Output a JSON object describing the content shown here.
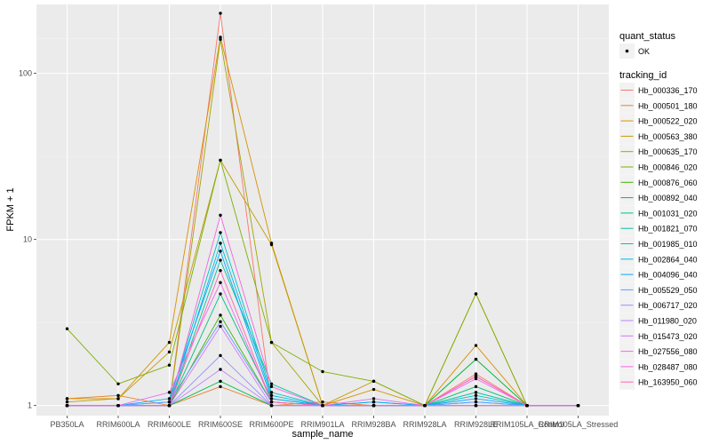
{
  "chart_data": {
    "type": "line",
    "xlabel": "sample_name",
    "ylabel": "FPKM + 1",
    "y_scale": "log10",
    "ylim": [
      0.87,
      260
    ],
    "grid": true,
    "categories": [
      "PB350LA",
      "RRIM600LA",
      "RRIM600LE",
      "RRIM600SE",
      "RRIM600PE",
      "RRIM901LA",
      "RRIM928BA",
      "RRIM928LA",
      "RRIM928LE",
      "RRIM105LA_Control",
      "RRIM105LA_Stressed"
    ],
    "y_ticks": [
      1,
      10,
      100
    ],
    "y_tick_labels": [
      "1",
      "10",
      "100"
    ],
    "legend": {
      "position": "right",
      "quant_title": "quant_status",
      "quant_label": "OK",
      "tracking_title": "tracking_id"
    },
    "series": [
      {
        "name": "Hb_000336_170",
        "color": "#F8766D",
        "values": [
          1.0,
          1.0,
          1.0,
          230,
          1.0,
          1.0,
          1.0,
          1.0,
          1.55,
          1.0,
          1.0
        ]
      },
      {
        "name": "Hb_000501_180",
        "color": "#EA8331",
        "values": [
          1.1,
          1.15,
          1.0,
          1.3,
          1.0,
          1.05,
          1.0,
          1.0,
          1.0,
          1.0,
          1.0
        ]
      },
      {
        "name": "Hb_000522_020",
        "color": "#D89000",
        "values": [
          1.1,
          1.1,
          2.4,
          165,
          9.5,
          1.0,
          1.25,
          1.0,
          2.3,
          1.0,
          1.0
        ]
      },
      {
        "name": "Hb_000563_380",
        "color": "#C09B00",
        "values": [
          1.05,
          1.1,
          2.1,
          30,
          9.3,
          1.0,
          1.4,
          1.0,
          4.7,
          1.0,
          1.0
        ]
      },
      {
        "name": "Hb_000635_170",
        "color": "#A3A500",
        "values": [
          1.0,
          1.0,
          1.0,
          160,
          2.4,
          1.0,
          1.0,
          1.0,
          1.0,
          1.0,
          1.0
        ]
      },
      {
        "name": "Hb_000846_020",
        "color": "#7CAE00",
        "values": [
          2.9,
          1.35,
          1.75,
          30,
          2.4,
          1.6,
          1.4,
          1.0,
          4.7,
          1.0,
          1.0
        ]
      },
      {
        "name": "Hb_000876_060",
        "color": "#39B600",
        "values": [
          1.0,
          1.0,
          1.0,
          3.5,
          1.05,
          1.0,
          1.0,
          1.0,
          1.9,
          1.0,
          1.0
        ]
      },
      {
        "name": "Hb_000892_040",
        "color": "#00BB4E",
        "values": [
          1.0,
          1.0,
          1.0,
          1.4,
          1.0,
          1.0,
          1.0,
          1.0,
          1.9,
          1.0,
          1.0
        ]
      },
      {
        "name": "Hb_001031_020",
        "color": "#00BF7D",
        "values": [
          1.0,
          1.0,
          1.0,
          4.7,
          1.1,
          1.0,
          1.0,
          1.0,
          1.3,
          1.0,
          1.0
        ]
      },
      {
        "name": "Hb_001821_070",
        "color": "#00C1A3",
        "values": [
          1.0,
          1.0,
          1.0,
          7.5,
          1.35,
          1.0,
          1.05,
          1.0,
          1.2,
          1.0,
          1.0
        ]
      },
      {
        "name": "Hb_001985_010",
        "color": "#00BFC4",
        "values": [
          1.0,
          1.0,
          1.05,
          11,
          1.2,
          1.0,
          1.0,
          1.0,
          1.15,
          1.0,
          1.0
        ]
      },
      {
        "name": "Hb_002864_040",
        "color": "#00B8E7",
        "values": [
          1.0,
          1.0,
          1.0,
          9.5,
          1.15,
          1.0,
          1.0,
          1.0,
          1.05,
          1.0,
          1.0
        ]
      },
      {
        "name": "Hb_004096_040",
        "color": "#00A9FF",
        "values": [
          1.0,
          1.0,
          1.1,
          8.5,
          1.1,
          1.0,
          1.05,
          1.0,
          1.1,
          1.0,
          1.0
        ]
      },
      {
        "name": "Hb_005529_050",
        "color": "#619CFF",
        "values": [
          1.0,
          1.0,
          1.05,
          3.2,
          1.05,
          1.0,
          1.0,
          1.0,
          1.05,
          1.0,
          1.0
        ]
      },
      {
        "name": "Hb_006717_020",
        "color": "#9590FF",
        "values": [
          1.0,
          1.0,
          1.0,
          2.0,
          1.0,
          1.0,
          1.0,
          1.0,
          1.0,
          1.0,
          1.0
        ]
      },
      {
        "name": "Hb_011980_020",
        "color": "#B983FF",
        "values": [
          1.0,
          1.0,
          1.0,
          1.65,
          1.0,
          1.0,
          1.0,
          1.0,
          1.0,
          1.0,
          1.0
        ]
      },
      {
        "name": "Hb_015473_020",
        "color": "#D376FF",
        "values": [
          1.0,
          1.0,
          1.0,
          3.0,
          1.0,
          1.0,
          1.0,
          1.0,
          1.0,
          1.0,
          1.0
        ]
      },
      {
        "name": "Hb_027556_080",
        "color": "#E76BF3",
        "values": [
          1.0,
          1.0,
          1.2,
          5.5,
          1.05,
          1.0,
          1.1,
          1.0,
          1.45,
          1.0,
          1.0
        ]
      },
      {
        "name": "Hb_028487_080",
        "color": "#F564E3",
        "values": [
          1.0,
          1.0,
          1.0,
          14,
          1.3,
          1.0,
          1.0,
          1.0,
          1.5,
          1.0,
          1.0
        ]
      },
      {
        "name": "Hb_163950_060",
        "color": "#FF64B0",
        "values": [
          1.0,
          1.0,
          1.0,
          6.5,
          1.05,
          1.0,
          1.0,
          1.0,
          1.5,
          1.0,
          1.0
        ]
      }
    ]
  }
}
